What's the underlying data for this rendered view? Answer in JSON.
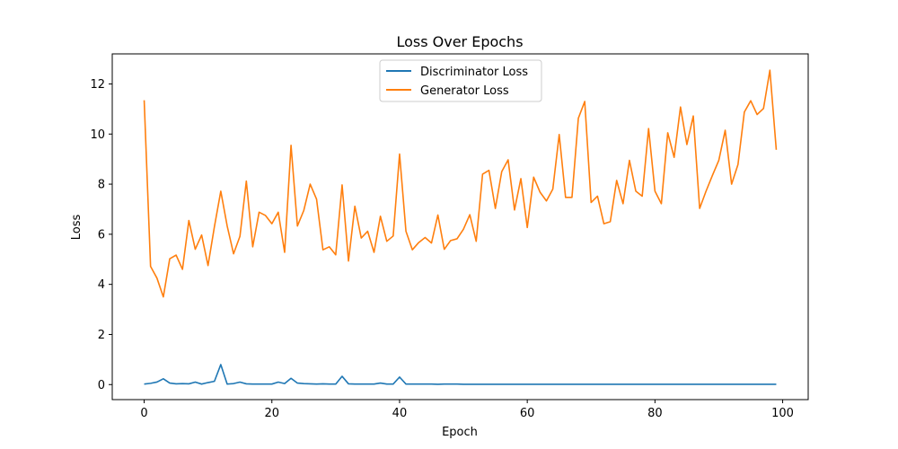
{
  "chart_data": {
    "type": "line",
    "title": "Loss Over Epochs",
    "xlabel": "Epoch",
    "ylabel": "Loss",
    "xlim": [
      -5,
      104
    ],
    "ylim": [
      -0.6,
      13.2
    ],
    "xticks": [
      0,
      20,
      40,
      60,
      80,
      100
    ],
    "yticks": [
      0,
      2,
      4,
      6,
      8,
      10,
      12
    ],
    "grid": false,
    "legend_position": "top-center",
    "x": [
      0,
      1,
      2,
      3,
      4,
      5,
      6,
      7,
      8,
      9,
      10,
      11,
      12,
      13,
      14,
      15,
      16,
      17,
      18,
      19,
      20,
      21,
      22,
      23,
      24,
      25,
      26,
      27,
      28,
      29,
      30,
      31,
      32,
      33,
      34,
      35,
      36,
      37,
      38,
      39,
      40,
      41,
      42,
      43,
      44,
      45,
      46,
      47,
      48,
      49,
      50,
      51,
      52,
      53,
      54,
      55,
      56,
      57,
      58,
      59,
      60,
      61,
      62,
      63,
      64,
      65,
      66,
      67,
      68,
      69,
      70,
      71,
      72,
      73,
      74,
      75,
      76,
      77,
      78,
      79,
      80,
      81,
      82,
      83,
      84,
      85,
      86,
      87,
      88,
      89,
      90,
      91,
      92,
      93,
      94,
      95,
      96,
      97,
      98,
      99
    ],
    "series": [
      {
        "name": "Discriminator Loss",
        "color": "#1f77b4",
        "values": [
          0.02,
          0.05,
          0.1,
          0.23,
          0.06,
          0.03,
          0.04,
          0.03,
          0.1,
          0.02,
          0.08,
          0.13,
          0.8,
          0.02,
          0.04,
          0.1,
          0.03,
          0.02,
          0.02,
          0.02,
          0.02,
          0.1,
          0.04,
          0.25,
          0.06,
          0.04,
          0.03,
          0.02,
          0.03,
          0.02,
          0.02,
          0.33,
          0.03,
          0.02,
          0.02,
          0.02,
          0.02,
          0.06,
          0.02,
          0.02,
          0.3,
          0.02,
          0.02,
          0.02,
          0.02,
          0.02,
          0.01,
          0.02,
          0.02,
          0.02,
          0.01,
          0.01,
          0.01,
          0.01,
          0.01,
          0.01,
          0.01,
          0.01,
          0.01,
          0.01,
          0.01,
          0.01,
          0.01,
          0.01,
          0.01,
          0.01,
          0.01,
          0.01,
          0.01,
          0.01,
          0.01,
          0.01,
          0.01,
          0.01,
          0.01,
          0.01,
          0.01,
          0.01,
          0.01,
          0.01,
          0.01,
          0.01,
          0.01,
          0.01,
          0.01,
          0.01,
          0.01,
          0.01,
          0.01,
          0.01,
          0.01,
          0.01,
          0.01,
          0.01,
          0.01,
          0.01,
          0.01,
          0.01,
          0.01,
          0.01
        ]
      },
      {
        "name": "Generator Loss",
        "color": "#ff7f0e",
        "values": [
          11.35,
          4.72,
          4.25,
          3.5,
          5.02,
          5.17,
          4.6,
          6.55,
          5.4,
          5.97,
          4.75,
          6.3,
          7.72,
          6.33,
          5.22,
          5.92,
          8.12,
          5.5,
          6.88,
          6.75,
          6.42,
          6.88,
          5.28,
          9.55,
          6.33,
          6.95,
          8.0,
          7.4,
          5.38,
          5.5,
          5.18,
          7.97,
          4.93,
          7.12,
          5.85,
          6.12,
          5.28,
          6.72,
          5.72,
          5.93,
          9.2,
          6.12,
          5.38,
          5.67,
          5.87,
          5.65,
          6.77,
          5.4,
          5.75,
          5.82,
          6.2,
          6.78,
          5.72,
          8.4,
          8.55,
          7.03,
          8.5,
          8.97,
          6.97,
          8.22,
          6.27,
          8.28,
          7.68,
          7.33,
          7.8,
          9.98,
          7.47,
          7.47,
          10.63,
          11.3,
          7.27,
          7.52,
          6.42,
          6.5,
          8.15,
          7.22,
          8.95,
          7.72,
          7.52,
          10.22,
          7.72,
          7.22,
          10.05,
          9.07,
          11.08,
          9.58,
          10.72,
          7.03,
          7.72,
          8.35,
          8.95,
          10.15,
          8.0,
          8.78,
          10.88,
          11.33,
          10.78,
          11.02,
          12.55,
          9.37
        ]
      }
    ]
  }
}
